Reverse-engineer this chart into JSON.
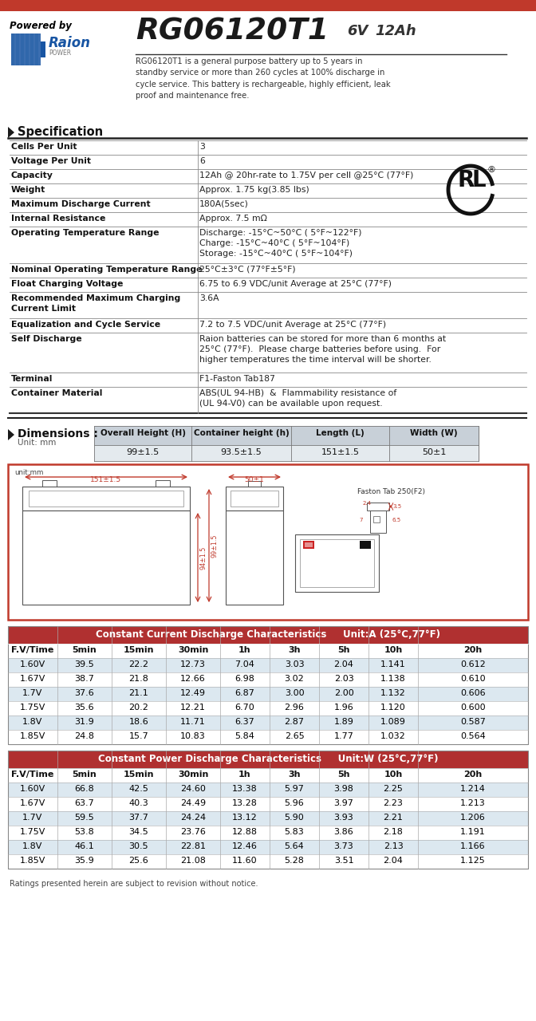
{
  "title_model": "RG06120T1",
  "title_voltage": "6V",
  "title_ah": "12Ah",
  "powered_by": "Powered by",
  "description": "RG06120T1 is a general purpose battery up to 5 years in\nstandby service or more than 260 cycles at 100% discharge in\ncycle service. This battery is rechargeable, highly efficient, leak\nproof and maintenance free.",
  "spec_title": "Specification",
  "spec_rows": [
    [
      "Cells Per Unit",
      "3"
    ],
    [
      "Voltage Per Unit",
      "6"
    ],
    [
      "Capacity",
      "12Ah @ 20hr-rate to 1.75V per cell @25°C (77°F)"
    ],
    [
      "Weight",
      "Approx. 1.75 kg(3.85 lbs)"
    ],
    [
      "Maximum Discharge Current",
      "180A(5sec)"
    ],
    [
      "Internal Resistance",
      "Approx. 7.5 mΩ"
    ],
    [
      "Operating Temperature Range",
      "Discharge: -15°C~50°C ( 5°F~122°F)\nCharge: -15°C~40°C ( 5°F~104°F)\nStorage: -15°C~40°C ( 5°F~104°F)"
    ],
    [
      "Nominal Operating Temperature Range",
      "25°C±3°C (77°F±5°F)"
    ],
    [
      "Float Charging Voltage",
      "6.75 to 6.9 VDC/unit Average at 25°C (77°F)"
    ],
    [
      "Recommended Maximum Charging\nCurrent Limit",
      "3.6A"
    ],
    [
      "Equalization and Cycle Service",
      "7.2 to 7.5 VDC/unit Average at 25°C (77°F)"
    ],
    [
      "Self Discharge",
      "Raion batteries can be stored for more than 6 months at\n25°C (77°F).  Please charge batteries before using.  For\nhigher temperatures the time interval will be shorter."
    ],
    [
      "Terminal",
      "F1-Faston Tab187"
    ],
    [
      "Container Material",
      "ABS(UL 94-HB)  &  Flammability resistance of\n(UL 94-V0) can be available upon request."
    ]
  ],
  "spec_row_heights": [
    18,
    18,
    18,
    18,
    18,
    18,
    46,
    18,
    18,
    33,
    18,
    50,
    18,
    33
  ],
  "dim_title": "Dimensions :",
  "dim_unit": "Unit: mm",
  "dim_headers": [
    "Overall Height (H)",
    "Container height (h)",
    "Length (L)",
    "Width (W)"
  ],
  "dim_values": [
    "99±1.5",
    "93.5±1.5",
    "151±1.5",
    "50±1"
  ],
  "cc_title": "Constant Current Discharge Characteristics",
  "cc_unit": "Unit:A (25°C,77°F)",
  "cc_headers": [
    "F.V/Time",
    "5min",
    "15min",
    "30min",
    "1h",
    "3h",
    "5h",
    "10h",
    "20h"
  ],
  "cc_rows": [
    [
      "1.60V",
      "39.5",
      "22.2",
      "12.73",
      "7.04",
      "3.03",
      "2.04",
      "1.141",
      "0.612"
    ],
    [
      "1.67V",
      "38.7",
      "21.8",
      "12.66",
      "6.98",
      "3.02",
      "2.03",
      "1.138",
      "0.610"
    ],
    [
      "1.7V",
      "37.6",
      "21.1",
      "12.49",
      "6.87",
      "3.00",
      "2.00",
      "1.132",
      "0.606"
    ],
    [
      "1.75V",
      "35.6",
      "20.2",
      "12.21",
      "6.70",
      "2.96",
      "1.96",
      "1.120",
      "0.600"
    ],
    [
      "1.8V",
      "31.9",
      "18.6",
      "11.71",
      "6.37",
      "2.87",
      "1.89",
      "1.089",
      "0.587"
    ],
    [
      "1.85V",
      "24.8",
      "15.7",
      "10.83",
      "5.84",
      "2.65",
      "1.77",
      "1.032",
      "0.564"
    ]
  ],
  "cp_title": "Constant Power Discharge Characteristics",
  "cp_unit": "Unit:W (25°C,77°F)",
  "cp_headers": [
    "F.V/Time",
    "5min",
    "15min",
    "30min",
    "1h",
    "3h",
    "5h",
    "10h",
    "20h"
  ],
  "cp_rows": [
    [
      "1.60V",
      "66.8",
      "42.5",
      "24.60",
      "13.38",
      "5.97",
      "3.98",
      "2.25",
      "1.214"
    ],
    [
      "1.67V",
      "63.7",
      "40.3",
      "24.49",
      "13.28",
      "5.96",
      "3.97",
      "2.23",
      "1.213"
    ],
    [
      "1.7V",
      "59.5",
      "37.7",
      "24.24",
      "13.12",
      "5.90",
      "3.93",
      "2.21",
      "1.206"
    ],
    [
      "1.75V",
      "53.8",
      "34.5",
      "23.76",
      "12.88",
      "5.83",
      "3.86",
      "2.18",
      "1.191"
    ],
    [
      "1.8V",
      "46.1",
      "30.5",
      "22.81",
      "12.46",
      "5.64",
      "3.73",
      "2.13",
      "1.166"
    ],
    [
      "1.85V",
      "35.9",
      "25.6",
      "21.08",
      "11.60",
      "5.28",
      "3.51",
      "2.04",
      "1.125"
    ]
  ],
  "footer": "Ratings presented herein are subject to revision without notice.",
  "red_color": "#c0392b",
  "table_header_bg": "#b03030",
  "table_alt_row": "#dce8f0",
  "dim_header_bg": "#c8d0d8",
  "arrow_color": "#c0392b",
  "line_color": "#555555",
  "spec_line_color": "#888888"
}
